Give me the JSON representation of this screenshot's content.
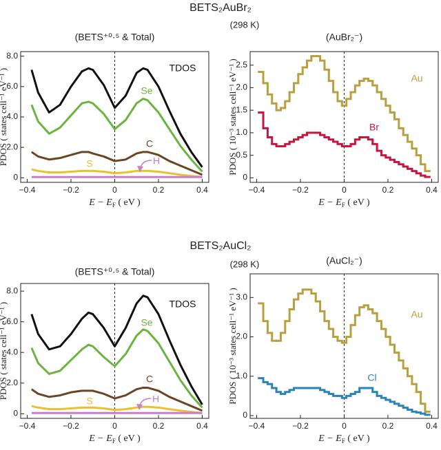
{
  "chart_data": [
    {
      "type": "line",
      "group_title": "BETS₂AuBr₂",
      "group_subtitle": "(298 K)",
      "title": "(BETS⁺⁰·⁵ & Total)",
      "ylabel": "PDOS ( states cell⁻¹ eV⁻¹ )",
      "xlabel": [
        "E − E",
        "F",
        " ( eV )"
      ],
      "xlim": [
        -0.43,
        0.43
      ],
      "ylim": [
        -0.3,
        8.3
      ],
      "vline": 0,
      "xticks": [
        {
          "value": -0.4,
          "label": "−0.4"
        },
        {
          "value": -0.2,
          "label": "−0.2"
        },
        0,
        0.2,
        0.4
      ],
      "yticks": [
        0,
        {
          "value": 2,
          "label": "2.0"
        },
        {
          "value": 4,
          "label": "4.0"
        },
        {
          "value": 6,
          "label": "6.0"
        },
        {
          "value": 8,
          "label": "8.0"
        }
      ],
      "x": [
        -0.38,
        -0.35,
        -0.3,
        -0.25,
        -0.2,
        -0.15,
        -0.12,
        -0.1,
        -0.05,
        0,
        0.05,
        0.1,
        0.13,
        0.15,
        0.2,
        0.25,
        0.3,
        0.35,
        0.4
      ],
      "series": [
        {
          "name": "TDOS",
          "color": "#111111",
          "values": [
            7.1,
            5.6,
            4.3,
            4.8,
            6.0,
            7.0,
            7.2,
            7.1,
            6.1,
            4.6,
            5.4,
            6.9,
            7.2,
            7.1,
            6.0,
            4.4,
            2.9,
            1.7,
            0.7
          ]
        },
        {
          "name": "Se",
          "color": "#6cb33f",
          "values": [
            4.8,
            3.7,
            2.9,
            3.3,
            4.1,
            4.9,
            5.0,
            4.9,
            4.2,
            3.2,
            3.8,
            4.9,
            5.2,
            5.1,
            4.3,
            3.2,
            2.1,
            1.2,
            0.4
          ]
        },
        {
          "name": "C",
          "color": "#6b4423",
          "values": [
            1.7,
            1.4,
            1.2,
            1.3,
            1.5,
            1.7,
            1.7,
            1.6,
            1.4,
            1.1,
            1.2,
            1.6,
            1.7,
            1.7,
            1.5,
            1.1,
            0.8,
            0.5,
            0.2
          ]
        },
        {
          "name": "S",
          "color": "#e8c030",
          "values": [
            0.55,
            0.45,
            0.35,
            0.35,
            0.4,
            0.45,
            0.45,
            0.45,
            0.4,
            0.3,
            0.35,
            0.45,
            0.45,
            0.45,
            0.4,
            0.3,
            0.2,
            0.12,
            0.05
          ]
        },
        {
          "name": "H",
          "color": "#c77dc7",
          "values": [
            0.05,
            0.05,
            0.05,
            0.05,
            0.05,
            0.05,
            0.05,
            0.05,
            0.05,
            0.05,
            0.05,
            0.05,
            0.05,
            0.05,
            0.05,
            0.05,
            0.05,
            0.05,
            0.05
          ]
        }
      ]
    },
    {
      "type": "step",
      "title": "(AuBr₂⁻)",
      "ylabel": "PDOS ( 10⁻³ states cell⁻¹ eV⁻¹ )",
      "xlabel": [
        "E − E",
        "F",
        " ( eV )"
      ],
      "xlim": [
        -0.43,
        0.43
      ],
      "ylim": [
        -0.1,
        2.8
      ],
      "vline": 0,
      "xticks": [
        {
          "value": -0.4,
          "label": "−0.4"
        },
        {
          "value": -0.2,
          "label": "−0.2"
        },
        0,
        0.2,
        0.4
      ],
      "yticks": [
        0,
        0.5,
        {
          "value": 1,
          "label": "1.0"
        },
        1.5,
        {
          "value": 2,
          "label": "2.0"
        },
        2.5
      ],
      "x": [
        -0.38,
        -0.36,
        -0.34,
        -0.32,
        -0.3,
        -0.28,
        -0.26,
        -0.24,
        -0.22,
        -0.2,
        -0.18,
        -0.16,
        -0.14,
        -0.12,
        -0.1,
        -0.08,
        -0.06,
        -0.04,
        -0.02,
        0,
        0.02,
        0.04,
        0.06,
        0.08,
        0.1,
        0.12,
        0.14,
        0.16,
        0.18,
        0.2,
        0.22,
        0.24,
        0.26,
        0.28,
        0.3,
        0.32,
        0.34,
        0.36,
        0.38
      ],
      "series": [
        {
          "name": "Au",
          "color": "#b8a040",
          "values": [
            2.35,
            2.1,
            1.85,
            1.65,
            1.5,
            1.55,
            1.7,
            1.9,
            2.1,
            2.3,
            2.45,
            2.6,
            2.7,
            2.7,
            2.6,
            2.4,
            2.15,
            1.9,
            1.7,
            1.6,
            1.75,
            1.9,
            2.05,
            2.15,
            2.2,
            2.15,
            2.05,
            1.9,
            1.75,
            1.6,
            1.45,
            1.3,
            1.1,
            0.95,
            0.8,
            0.65,
            0.5,
            0.3,
            0.15
          ]
        },
        {
          "name": "Br",
          "color": "#c4173f",
          "values": [
            1.45,
            1.1,
            0.9,
            0.75,
            0.7,
            0.7,
            0.75,
            0.8,
            0.85,
            0.9,
            0.95,
            1.0,
            1.0,
            1.0,
            0.95,
            0.9,
            0.85,
            0.8,
            0.75,
            0.7,
            0.7,
            0.75,
            0.85,
            0.9,
            0.9,
            0.85,
            0.75,
            0.6,
            0.5,
            0.45,
            0.4,
            0.35,
            0.3,
            0.25,
            0.2,
            0.15,
            0.1,
            0.05,
            0.02
          ]
        }
      ]
    },
    {
      "type": "line",
      "group_title": "BETS₂AuCl₂",
      "group_subtitle": "(298 K)",
      "title": "(BETS⁺⁰·⁵ & Total)",
      "ylabel": "PDOS ( states cell⁻¹ eV⁻¹ )",
      "xlabel": [
        "E − E",
        "F",
        " ( eV )"
      ],
      "xlim": [
        -0.43,
        0.43
      ],
      "ylim": [
        -0.3,
        8.5
      ],
      "vline": 0,
      "xticks": [
        {
          "value": -0.4,
          "label": "−0.4"
        },
        {
          "value": -0.2,
          "label": "−0.2"
        },
        0,
        0.2,
        0.4
      ],
      "yticks": [
        0,
        {
          "value": 2,
          "label": "2.0"
        },
        {
          "value": 4,
          "label": "4.0"
        },
        {
          "value": 6,
          "label": "6.0"
        },
        {
          "value": 8,
          "label": "8.0"
        }
      ],
      "x": [
        -0.38,
        -0.35,
        -0.3,
        -0.25,
        -0.2,
        -0.15,
        -0.12,
        -0.1,
        -0.05,
        0,
        0.05,
        0.1,
        0.13,
        0.15,
        0.2,
        0.25,
        0.3,
        0.35,
        0.4
      ],
      "series": [
        {
          "name": "TDOS",
          "color": "#111111",
          "values": [
            6.5,
            5.2,
            4.2,
            4.4,
            5.2,
            6.2,
            6.6,
            6.5,
            5.6,
            4.4,
            5.6,
            7.2,
            7.7,
            7.6,
            6.5,
            4.8,
            3.2,
            1.8,
            0.6
          ]
        },
        {
          "name": "Se",
          "color": "#6cb33f",
          "values": [
            4.3,
            3.3,
            2.6,
            2.8,
            3.5,
            4.2,
            4.5,
            4.4,
            3.7,
            3.1,
            3.9,
            5.1,
            5.5,
            5.4,
            4.6,
            3.4,
            2.2,
            1.2,
            0.4
          ]
        },
        {
          "name": "C",
          "color": "#6b4423",
          "values": [
            1.6,
            1.3,
            1.1,
            1.2,
            1.4,
            1.5,
            1.5,
            1.5,
            1.3,
            1.0,
            1.2,
            1.6,
            1.7,
            1.7,
            1.5,
            1.1,
            0.8,
            0.5,
            0.2
          ]
        },
        {
          "name": "S",
          "color": "#e8c030",
          "values": [
            0.5,
            0.4,
            0.3,
            0.3,
            0.35,
            0.4,
            0.4,
            0.4,
            0.35,
            0.25,
            0.3,
            0.4,
            0.45,
            0.45,
            0.4,
            0.3,
            0.2,
            0.12,
            0.05
          ]
        },
        {
          "name": "H",
          "color": "#c77dc7",
          "values": [
            0.05,
            0.05,
            0.05,
            0.05,
            0.05,
            0.05,
            0.05,
            0.05,
            0.05,
            0.05,
            0.05,
            0.05,
            0.05,
            0.05,
            0.05,
            0.05,
            0.05,
            0.05,
            0.05
          ]
        }
      ]
    },
    {
      "type": "step",
      "title": "(AuCl₂⁻)",
      "ylabel": "PDOS ( 10⁻³ states cell⁻¹ eV⁻¹ )",
      "xlabel": [
        "E − E",
        "F",
        " ( eV )"
      ],
      "xlim": [
        -0.43,
        0.43
      ],
      "ylim": [
        -0.07,
        3.6
      ],
      "vline": 0,
      "xticks": [
        {
          "value": -0.4,
          "label": "−0.4"
        },
        {
          "value": -0.2,
          "label": "−0.2"
        },
        0,
        0.2,
        0.4
      ],
      "yticks": [
        0,
        {
          "value": 1,
          "label": "1.0"
        },
        {
          "value": 2,
          "label": "2.0"
        },
        {
          "value": 3,
          "label": "3.0"
        }
      ],
      "x": [
        -0.38,
        -0.36,
        -0.34,
        -0.32,
        -0.3,
        -0.28,
        -0.26,
        -0.24,
        -0.22,
        -0.2,
        -0.18,
        -0.16,
        -0.14,
        -0.12,
        -0.1,
        -0.08,
        -0.06,
        -0.04,
        -0.02,
        0,
        0.02,
        0.04,
        0.06,
        0.08,
        0.1,
        0.12,
        0.14,
        0.16,
        0.18,
        0.2,
        0.22,
        0.24,
        0.26,
        0.28,
        0.3,
        0.32,
        0.34,
        0.36,
        0.38
      ],
      "series": [
        {
          "name": "Au",
          "color": "#b8a040",
          "values": [
            2.85,
            2.4,
            2.1,
            1.9,
            1.9,
            2.1,
            2.4,
            2.7,
            2.95,
            3.1,
            3.2,
            3.2,
            3.1,
            2.9,
            2.65,
            2.4,
            2.2,
            2.0,
            1.9,
            1.85,
            2.0,
            2.3,
            2.55,
            2.75,
            2.8,
            2.7,
            2.6,
            2.4,
            2.2,
            2.0,
            1.8,
            1.6,
            1.4,
            1.2,
            1.0,
            0.8,
            0.6,
            0.3,
            0.1
          ]
        },
        {
          "name": "Cl",
          "color": "#2c84b4",
          "values": [
            0.95,
            0.85,
            0.8,
            0.7,
            0.6,
            0.55,
            0.6,
            0.65,
            0.7,
            0.7,
            0.7,
            0.7,
            0.7,
            0.7,
            0.65,
            0.6,
            0.55,
            0.5,
            0.5,
            0.45,
            0.5,
            0.55,
            0.6,
            0.7,
            0.7,
            0.7,
            0.6,
            0.5,
            0.45,
            0.4,
            0.35,
            0.3,
            0.25,
            0.2,
            0.15,
            0.1,
            0.08,
            0.05,
            0.02
          ]
        }
      ]
    }
  ]
}
